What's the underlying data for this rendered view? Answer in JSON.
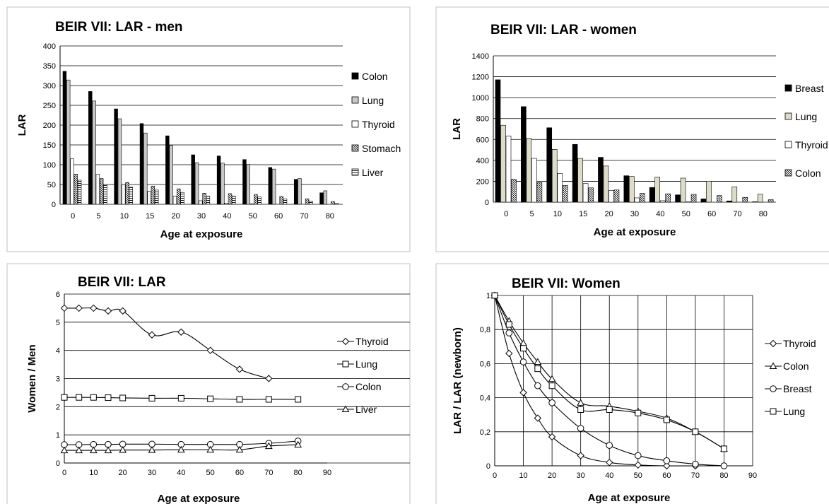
{
  "chart_data": [
    {
      "type": "bar",
      "title": "BEIR VII: LAR - men",
      "xlabel": "Age at exposure",
      "ylabel": "LAR",
      "ylim": [
        0,
        400
      ],
      "yticks": [
        0,
        50,
        100,
        150,
        200,
        250,
        300,
        350,
        400
      ],
      "grid": true,
      "legend_position": "right",
      "categories": [
        "0",
        "5",
        "10",
        "15",
        "20",
        "30",
        "40",
        "50",
        "60",
        "70",
        "80"
      ],
      "series": [
        {
          "name": "Colon",
          "values": [
            336,
            285,
            241,
            204,
            173,
            125,
            122,
            113,
            93,
            63,
            29
          ]
        },
        {
          "name": "Lung",
          "values": [
            314,
            261,
            216,
            180,
            149,
            105,
            104,
            101,
            89,
            65,
            34
          ]
        },
        {
          "name": "Thyroid",
          "values": [
            115,
            76,
            50,
            33,
            21,
            9,
            3,
            1,
            0,
            0,
            0
          ]
        },
        {
          "name": "Stomach",
          "values": [
            76,
            65,
            55,
            46,
            39,
            28,
            27,
            25,
            20,
            14,
            7
          ]
        },
        {
          "name": "Liver",
          "values": [
            61,
            50,
            43,
            36,
            30,
            21,
            21,
            19,
            14,
            8,
            3
          ]
        }
      ]
    },
    {
      "type": "bar",
      "title": "BEIR VII:  LAR - women",
      "xlabel": "Age at exposure",
      "ylabel": "LAR",
      "ylim": [
        0,
        1400
      ],
      "yticks": [
        0,
        200,
        400,
        600,
        800,
        1000,
        1200,
        1400
      ],
      "grid": true,
      "legend_position": "right",
      "categories": [
        "0",
        "5",
        "10",
        "15",
        "20",
        "30",
        "40",
        "50",
        "60",
        "70",
        "80"
      ],
      "series": [
        {
          "name": "Breast",
          "values": [
            1171,
            914,
            712,
            553,
            429,
            253,
            141,
            70,
            31,
            12,
            4
          ]
        },
        {
          "name": "Lung",
          "values": [
            736,
            611,
            505,
            419,
            346,
            246,
            240,
            230,
            201,
            147,
            77
          ]
        },
        {
          "name": "Thyroid",
          "values": [
            634,
            419,
            275,
            178,
            113,
            41,
            14,
            3,
            0,
            0,
            0
          ]
        },
        {
          "name": "Colon",
          "values": [
            220,
            187,
            160,
            137,
            117,
            84,
            80,
            75,
            63,
            46,
            24
          ]
        }
      ]
    },
    {
      "type": "line",
      "title": "BEIR VII: LAR",
      "xlabel": "Age at exposure",
      "ylabel": "Women / Men",
      "xlim": [
        0,
        90
      ],
      "ylim": [
        0,
        6
      ],
      "xticks": [
        0,
        10,
        20,
        30,
        40,
        50,
        60,
        70,
        80,
        90
      ],
      "yticks": [
        0,
        1,
        2,
        3,
        4,
        5,
        6
      ],
      "grid": true,
      "legend_position": "right",
      "series": [
        {
          "name": "Thyroid",
          "marker": "diamond",
          "x": [
            0,
            5,
            10,
            15,
            20,
            30,
            40,
            50,
            60,
            70
          ],
          "y": [
            5.5,
            5.5,
            5.5,
            5.4,
            5.4,
            4.55,
            4.65,
            4.0,
            3.33,
            3.0
          ]
        },
        {
          "name": "Lung",
          "marker": "square",
          "x": [
            0,
            5,
            10,
            15,
            20,
            30,
            40,
            50,
            60,
            70,
            80
          ],
          "y": [
            2.33,
            2.33,
            2.33,
            2.32,
            2.31,
            2.3,
            2.3,
            2.28,
            2.26,
            2.26,
            2.26
          ]
        },
        {
          "name": "Colon",
          "marker": "circle",
          "x": [
            0,
            5,
            10,
            15,
            20,
            30,
            40,
            50,
            60,
            70,
            80
          ],
          "y": [
            0.65,
            0.65,
            0.66,
            0.66,
            0.67,
            0.67,
            0.66,
            0.66,
            0.66,
            0.7,
            0.78
          ]
        },
        {
          "name": "Liver",
          "marker": "triangle",
          "x": [
            0,
            5,
            10,
            15,
            20,
            30,
            40,
            50,
            60,
            70,
            80
          ],
          "y": [
            0.45,
            0.45,
            0.45,
            0.45,
            0.46,
            0.46,
            0.47,
            0.47,
            0.47,
            0.6,
            0.65
          ]
        }
      ]
    },
    {
      "type": "line",
      "title": "BEIR VII: Women",
      "xlabel": "Age at exposure",
      "ylabel": "LAR  / LAR (newborn)",
      "xlim": [
        0,
        90
      ],
      "ylim": [
        0,
        1
      ],
      "xticks": [
        0,
        10,
        20,
        30,
        40,
        50,
        60,
        70,
        80,
        90
      ],
      "yticks": [
        0,
        0.2,
        0.4,
        0.6,
        0.8,
        1
      ],
      "ytick_labels": [
        "0",
        "0,2",
        "0,4",
        "0,6",
        "0,8",
        "1"
      ],
      "grid": true,
      "legend_position": "right",
      "series": [
        {
          "name": "Thyroid",
          "marker": "diamond",
          "x": [
            0,
            5,
            10,
            15,
            20,
            30,
            40,
            50,
            60,
            70,
            80
          ],
          "y": [
            1.0,
            0.66,
            0.43,
            0.28,
            0.17,
            0.06,
            0.02,
            0.005,
            0.0,
            0.0,
            0.0
          ]
        },
        {
          "name": "Colon",
          "marker": "triangle",
          "x": [
            0,
            5,
            10,
            15,
            20,
            30,
            40,
            50,
            60,
            70,
            80
          ],
          "y": [
            1.0,
            0.85,
            0.72,
            0.61,
            0.51,
            0.37,
            0.35,
            0.32,
            0.28,
            0.2,
            0.1
          ]
        },
        {
          "name": "Breast",
          "marker": "circle",
          "x": [
            0,
            5,
            10,
            15,
            20,
            30,
            40,
            50,
            60,
            70,
            80
          ],
          "y": [
            1.0,
            0.78,
            0.61,
            0.47,
            0.37,
            0.22,
            0.12,
            0.06,
            0.03,
            0.01,
            0.0
          ]
        },
        {
          "name": "Lung",
          "marker": "square",
          "x": [
            0,
            5,
            10,
            15,
            20,
            30,
            40,
            50,
            60,
            70,
            80
          ],
          "y": [
            1.0,
            0.83,
            0.69,
            0.57,
            0.47,
            0.33,
            0.33,
            0.31,
            0.27,
            0.2,
            0.1
          ]
        }
      ]
    }
  ]
}
